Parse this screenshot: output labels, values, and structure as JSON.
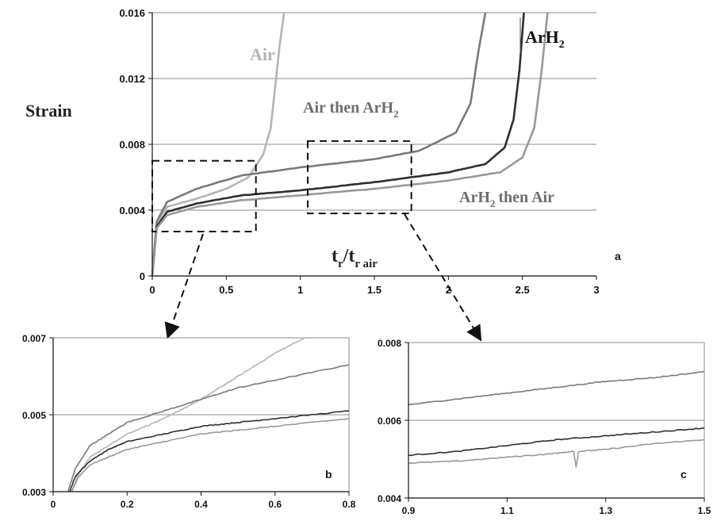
{
  "chart_data": [
    {
      "panel": "a",
      "type": "line",
      "ylabel": "Strain",
      "xlabel": "t_r/t_r air",
      "xlabel_main": "t",
      "xlabel_sub1": "r",
      "xlabel_slash": "/t",
      "xlabel_sub2": "r air",
      "xlim": [
        0,
        3
      ],
      "ylim": [
        0,
        0.016
      ],
      "xticks": [
        0,
        0.5,
        1,
        1.5,
        2,
        2.5,
        3
      ],
      "xtick_labels": [
        "0",
        "0.5",
        "1",
        "1.5",
        "2",
        "2.5",
        "3"
      ],
      "yticks": [
        0,
        0.004,
        0.008,
        0.012,
        0.016
      ],
      "ytick_labels": [
        "0",
        "0.004",
        "0.008",
        "0.012",
        "0.016"
      ],
      "grid": "horizontal",
      "series": [
        {
          "name": "Air",
          "color": "#b4b4b4",
          "x": [
            0,
            0.03,
            0.1,
            0.3,
            0.5,
            0.65,
            0.75,
            0.8,
            0.83,
            0.86,
            0.89
          ],
          "y": [
            0,
            0.0032,
            0.0042,
            0.0047,
            0.0053,
            0.006,
            0.0074,
            0.009,
            0.0115,
            0.014,
            0.016
          ]
        },
        {
          "name": "Air then ArH2",
          "color": "#7a7a7a",
          "x": [
            0,
            0.03,
            0.1,
            0.3,
            0.6,
            1.0,
            1.5,
            1.8,
            2.05,
            2.15,
            2.2,
            2.25
          ],
          "y": [
            0,
            0.0033,
            0.0045,
            0.0053,
            0.0061,
            0.0066,
            0.0071,
            0.0076,
            0.0087,
            0.0105,
            0.0135,
            0.016
          ]
        },
        {
          "name": "ArH2",
          "color": "#2e2e2e",
          "x": [
            0,
            0.03,
            0.1,
            0.3,
            0.6,
            1.0,
            1.5,
            2.0,
            2.25,
            2.38,
            2.44,
            2.48,
            2.51
          ],
          "y": [
            0,
            0.003,
            0.0039,
            0.0044,
            0.0049,
            0.0052,
            0.0057,
            0.0063,
            0.0068,
            0.0078,
            0.0095,
            0.0125,
            0.016
          ]
        },
        {
          "name": "ArH2 then Air",
          "color": "#999999",
          "x": [
            0,
            0.03,
            0.1,
            0.3,
            0.6,
            1.0,
            1.5,
            2.0,
            2.35,
            2.5,
            2.58,
            2.63,
            2.67
          ],
          "y": [
            0,
            0.0029,
            0.0037,
            0.0042,
            0.0046,
            0.0049,
            0.0053,
            0.0058,
            0.0063,
            0.0072,
            0.009,
            0.0125,
            0.016
          ]
        }
      ],
      "annotations": {
        "air": "Air",
        "air_then_arh2_main": "Air then ArH",
        "arh2_main": "ArH",
        "arh2_then_air_main": "ArH",
        "arh2_then_air_tail": "then Air",
        "sub2": "2",
        "panel_letter": "a"
      },
      "zoom_boxes": [
        {
          "x": [
            0,
            0.7
          ],
          "y": [
            0.0027,
            0.007
          ]
        },
        {
          "x": [
            1.05,
            1.75
          ],
          "y": [
            0.0038,
            0.0082
          ]
        }
      ]
    },
    {
      "panel": "b",
      "type": "line",
      "xlim": [
        0,
        0.8
      ],
      "ylim": [
        0.003,
        0.007
      ],
      "xticks": [
        0,
        0.2,
        0.4,
        0.6,
        0.8
      ],
      "xtick_labels": [
        "0",
        "0.2",
        "0.4",
        "0.6",
        "0.8"
      ],
      "yticks": [
        0.003,
        0.005,
        0.007
      ],
      "ytick_labels": [
        "0.003",
        "0.005",
        "0.007"
      ],
      "grid": "horizontal",
      "panel_letter": "b",
      "series": [
        {
          "name": "Air",
          "color": "#b4b4b4",
          "x": [
            0.05,
            0.07,
            0.1,
            0.15,
            0.2,
            0.3,
            0.4,
            0.5,
            0.6,
            0.68
          ],
          "y": [
            0.003,
            0.0035,
            0.0039,
            0.0042,
            0.0045,
            0.0049,
            0.0054,
            0.006,
            0.0066,
            0.007
          ]
        },
        {
          "name": "Air then ArH2",
          "color": "#7a7a7a",
          "x": [
            0.04,
            0.06,
            0.1,
            0.15,
            0.2,
            0.3,
            0.4,
            0.5,
            0.6,
            0.8
          ],
          "y": [
            0.003,
            0.0036,
            0.0042,
            0.0045,
            0.0048,
            0.0051,
            0.0054,
            0.0057,
            0.0059,
            0.0063
          ]
        },
        {
          "name": "ArH2",
          "color": "#2e2e2e",
          "x": [
            0.045,
            0.06,
            0.1,
            0.15,
            0.2,
            0.3,
            0.4,
            0.5,
            0.6,
            0.8
          ],
          "y": [
            0.003,
            0.0034,
            0.0038,
            0.0041,
            0.0043,
            0.0045,
            0.0047,
            0.0048,
            0.0049,
            0.0051
          ]
        },
        {
          "name": "ArH2 then Air",
          "color": "#999999",
          "x": [
            0.05,
            0.07,
            0.1,
            0.15,
            0.2,
            0.3,
            0.4,
            0.5,
            0.6,
            0.8
          ],
          "y": [
            0.003,
            0.0034,
            0.0037,
            0.0039,
            0.0041,
            0.0043,
            0.0045,
            0.0046,
            0.0047,
            0.0049
          ]
        }
      ]
    },
    {
      "panel": "c",
      "type": "line",
      "xlim": [
        0.9,
        1.5
      ],
      "ylim": [
        0.004,
        0.008
      ],
      "xticks": [
        0.9,
        1.1,
        1.3,
        1.5
      ],
      "xtick_labels": [
        "0.9",
        "1.1",
        "1.3",
        "1.5"
      ],
      "yticks": [
        0.004,
        0.006,
        0.008
      ],
      "ytick_labels": [
        "0.004",
        "0.006",
        "0.008"
      ],
      "grid": "horizontal",
      "panel_letter": "c",
      "series": [
        {
          "name": "Air then ArH2",
          "color": "#7a7a7a",
          "x": [
            0.9,
            1.0,
            1.1,
            1.2,
            1.3,
            1.4,
            1.5
          ],
          "y": [
            0.0064,
            0.00655,
            0.0067,
            0.00685,
            0.007,
            0.0071,
            0.00725
          ]
        },
        {
          "name": "ArH2",
          "color": "#2e2e2e",
          "x": [
            0.9,
            1.0,
            1.1,
            1.2,
            1.3,
            1.4,
            1.5
          ],
          "y": [
            0.0051,
            0.0052,
            0.00535,
            0.0055,
            0.0056,
            0.0057,
            0.0058
          ]
        },
        {
          "name": "ArH2 then Air",
          "color": "#999999",
          "x": [
            0.9,
            1.0,
            1.1,
            1.2,
            1.235,
            1.24,
            1.245,
            1.3,
            1.4,
            1.5
          ],
          "y": [
            0.0049,
            0.00495,
            0.00505,
            0.00515,
            0.0052,
            0.0048,
            0.0052,
            0.00525,
            0.0054,
            0.0055
          ]
        }
      ]
    }
  ]
}
